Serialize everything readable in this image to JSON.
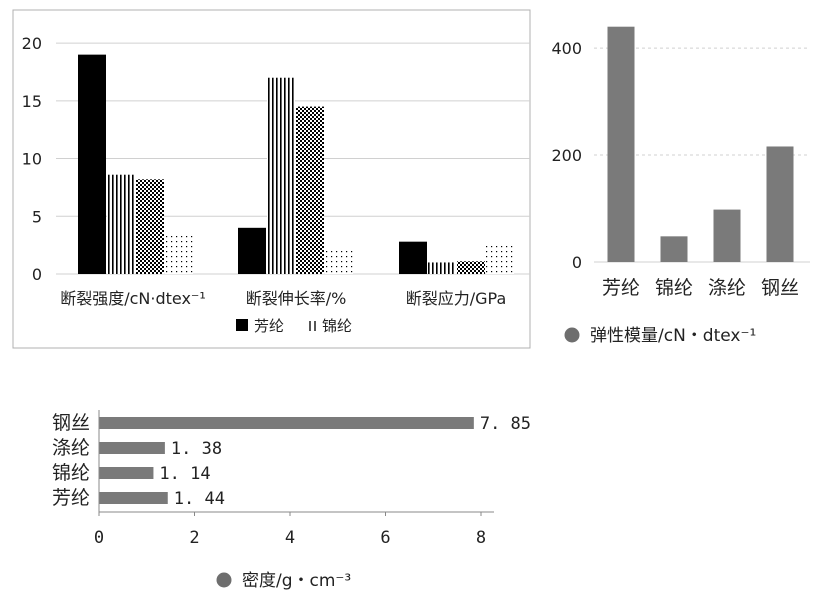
{
  "chart_data": [
    {
      "type": "bar",
      "categories": [
        "断裂强度/cN·dtex⁻¹",
        "断裂伸长率/%",
        "断裂应力/GPa"
      ],
      "series": [
        {
          "name": "芳纶",
          "values": [
            19,
            4,
            2.8
          ],
          "pattern": "solid"
        },
        {
          "name": "锦纶",
          "values": [
            8.6,
            17,
            1
          ],
          "pattern": "vertical-lines"
        },
        {
          "values": [
            8.2,
            14.5,
            1.1
          ],
          "pattern": "crosshatch"
        },
        {
          "values": [
            3.5,
            2,
            2.7
          ],
          "pattern": "dots"
        }
      ],
      "ylim": [
        0,
        22
      ],
      "yticks": [
        "0",
        "5",
        "10",
        "15",
        "20"
      ],
      "legend": [
        "芳纶",
        "锦纶"
      ],
      "legend_position": "bottom",
      "grid": true
    },
    {
      "type": "bar",
      "categories": [
        "芳纶",
        "锦纶",
        "涤纶",
        "钢丝"
      ],
      "values": [
        440,
        48,
        98,
        216
      ],
      "ylim": [
        0,
        460
      ],
      "yticks": [
        "0",
        "200",
        "400"
      ],
      "legend": "弹性模量/cN・dtex⁻¹",
      "legend_position": "bottom",
      "grid": true
    },
    {
      "type": "bar",
      "orientation": "horizontal",
      "categories": [
        "钢丝",
        "涤纶",
        "锦纶",
        "芳纶"
      ],
      "values": [
        7.85,
        1.38,
        1.14,
        1.44
      ],
      "data_labels": [
        "7. 85",
        "1. 38",
        "1. 14",
        "1. 44"
      ],
      "xlim": [
        0,
        8
      ],
      "xticks": [
        "0",
        "2",
        "4",
        "6",
        "8"
      ],
      "legend": "密度/g・cm⁻³",
      "legend_position": "bottom"
    }
  ],
  "colors": {
    "bar": "#7a7a7a",
    "dark": "#000000",
    "marker": "#6e6e6e",
    "grid": "#d0d0d0"
  }
}
